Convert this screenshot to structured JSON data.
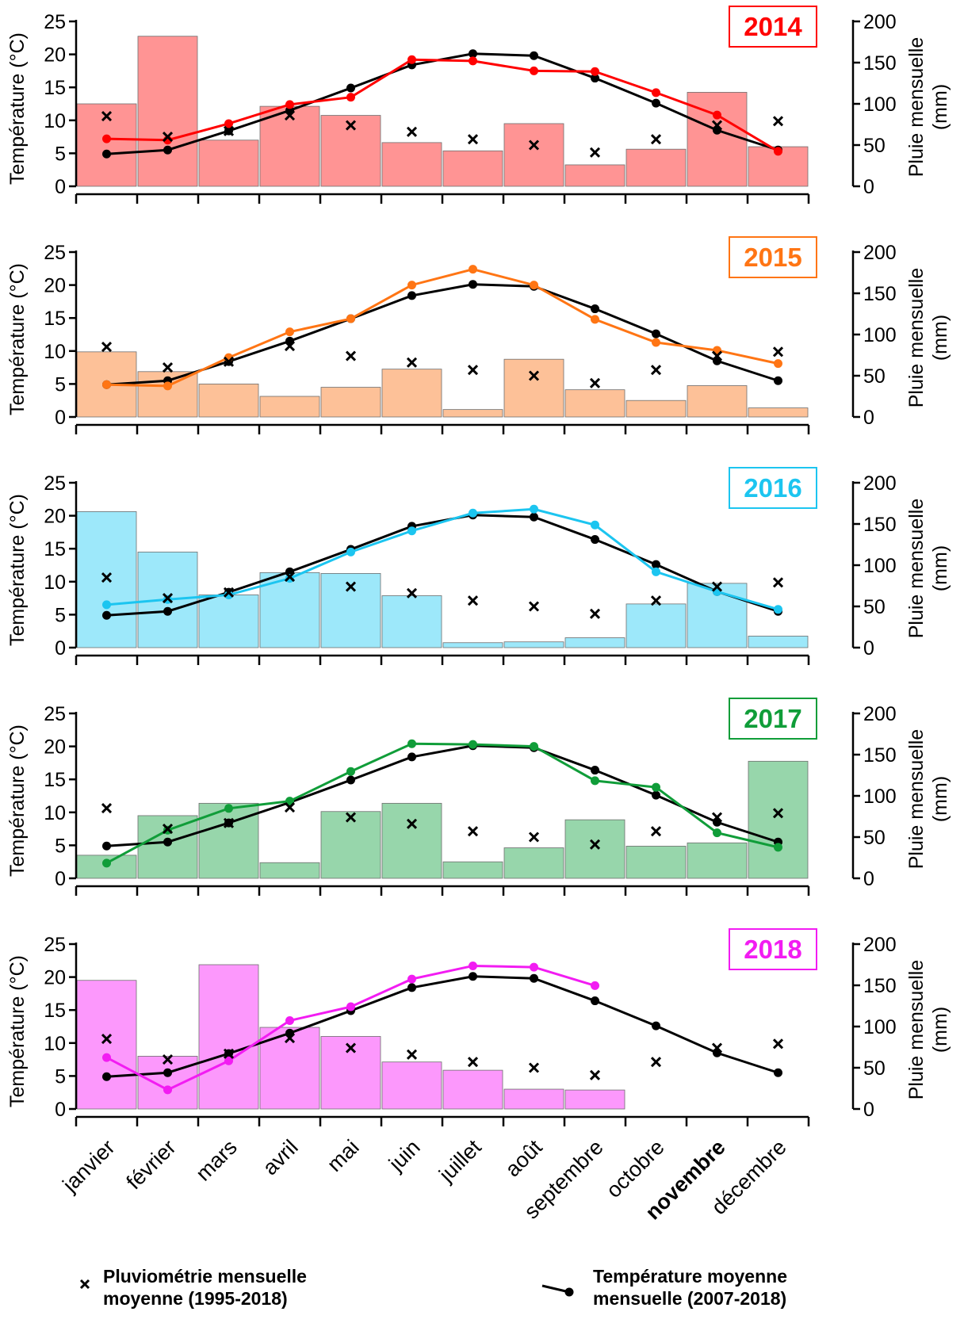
{
  "months": [
    "janvier",
    "février",
    "mars",
    "avril",
    "mai",
    "juin",
    "juillet",
    "août",
    "septembre",
    "octobre",
    "novembre",
    "décembre"
  ],
  "y_left_label": "Température (°C)",
  "y_right_label_line1": "Pluie mensuelle",
  "y_right_label_line2": "(mm)",
  "legend": {
    "rain_line1": "Pluviométrie mensuelle",
    "rain_line2": "moyenne (1995-2018)",
    "temp_line1": "Température moyenne",
    "temp_line2": "mensuelle (2007-2018)"
  },
  "chart_data": {
    "type": "bar+line",
    "x": [
      "janvier",
      "février",
      "mars",
      "avril",
      "mai",
      "juin",
      "juillet",
      "août",
      "septembre",
      "octobre",
      "novembre",
      "décembre"
    ],
    "ylim_left": [
      0,
      25
    ],
    "yticks_left": [
      0,
      5,
      10,
      15,
      20,
      25
    ],
    "ylim_right": [
      0,
      200
    ],
    "yticks_right": [
      0,
      50,
      100,
      150,
      200
    ],
    "avg_temperature_2007_2018": [
      4.9,
      5.5,
      8.4,
      11.5,
      14.9,
      18.4,
      20.1,
      19.8,
      16.4,
      12.6,
      8.5,
      5.5
    ],
    "avg_rain_1995_2018": [
      85,
      60,
      67,
      86,
      74,
      66,
      57,
      50,
      41,
      57,
      74,
      79
    ],
    "panels": [
      {
        "year": "2014",
        "color": "#ff0000",
        "bar_color": "#ff9494",
        "rain": [
          100,
          182,
          56,
          97,
          86,
          53,
          43,
          76,
          26,
          45,
          114,
          48
        ],
        "temperature": [
          7.2,
          7.0,
          9.5,
          12.4,
          13.5,
          19.2,
          19.0,
          17.5,
          17.4,
          14.2,
          10.8,
          5.3
        ]
      },
      {
        "year": "2015",
        "color": "#ff7514",
        "bar_color": "#fdc198",
        "rain": [
          79,
          55,
          40,
          25,
          36,
          58,
          9,
          70,
          33,
          20,
          38,
          11
        ],
        "temperature": [
          4.9,
          4.7,
          9.0,
          12.9,
          14.9,
          20.0,
          22.4,
          20.0,
          14.8,
          11.3,
          10.1,
          8.1
        ]
      },
      {
        "year": "2016",
        "color": "#1cc5f0",
        "bar_color": "#9de8fa",
        "rain": [
          165,
          116,
          64,
          91,
          90,
          63,
          6,
          7,
          12,
          53,
          78,
          14
        ],
        "temperature": [
          6.5,
          7.3,
          8.0,
          10.5,
          14.5,
          17.7,
          20.4,
          21.0,
          18.6,
          11.5,
          8.5,
          5.8
        ]
      },
      {
        "year": "2017",
        "color": "#109d39",
        "bar_color": "#97d6ab",
        "rain": [
          28,
          76,
          91,
          19,
          81,
          91,
          20,
          37,
          71,
          39,
          43,
          142
        ],
        "temperature": [
          2.3,
          7.3,
          10.6,
          11.7,
          16.2,
          20.4,
          20.3,
          20.0,
          14.8,
          13.8,
          6.9,
          4.7
        ]
      },
      {
        "year": "2018",
        "color": "#f21cf2",
        "bar_color": "#fc98fc",
        "rain": [
          156,
          64,
          175,
          99,
          88,
          57,
          47,
          24,
          23,
          null,
          null,
          null
        ],
        "temperature": [
          7.8,
          2.9,
          7.3,
          13.4,
          15.5,
          19.7,
          21.7,
          21.5,
          18.7,
          null,
          null,
          null
        ]
      }
    ]
  }
}
